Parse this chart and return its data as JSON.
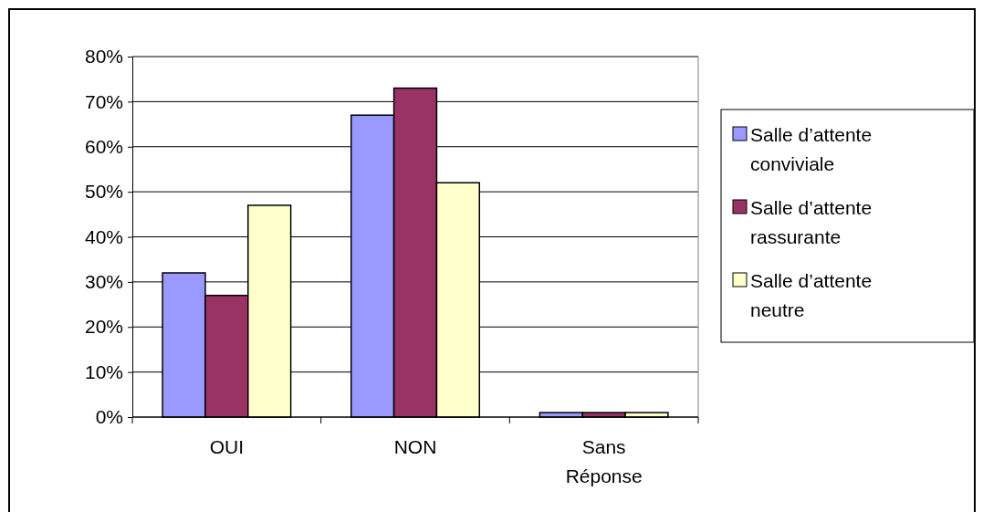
{
  "chart_data": {
    "type": "bar",
    "categories": [
      "OUI",
      "NON",
      "Sans Réponse"
    ],
    "series": [
      {
        "name": "Salle d’attente conviviale",
        "color": "#9999ff",
        "values": [
          32,
          67,
          1
        ]
      },
      {
        "name": "Salle d’attente rassurante",
        "color": "#993366",
        "values": [
          27,
          73,
          1
        ]
      },
      {
        "name": "Salle d’attente neutre",
        "color": "#ffffcc",
        "values": [
          47,
          52,
          1
        ]
      }
    ],
    "ylim": [
      0,
      80
    ],
    "yticks": [
      {
        "value": 0,
        "label": "0%"
      },
      {
        "value": 10,
        "label": "10%"
      },
      {
        "value": 20,
        "label": "20%"
      },
      {
        "value": 30,
        "label": "30%"
      },
      {
        "value": 40,
        "label": "40%"
      },
      {
        "value": 50,
        "label": "50%"
      },
      {
        "value": 60,
        "label": "60%"
      },
      {
        "value": 70,
        "label": "70%"
      },
      {
        "value": 80,
        "label": "80%"
      }
    ],
    "grid": "y",
    "legend": "right"
  }
}
